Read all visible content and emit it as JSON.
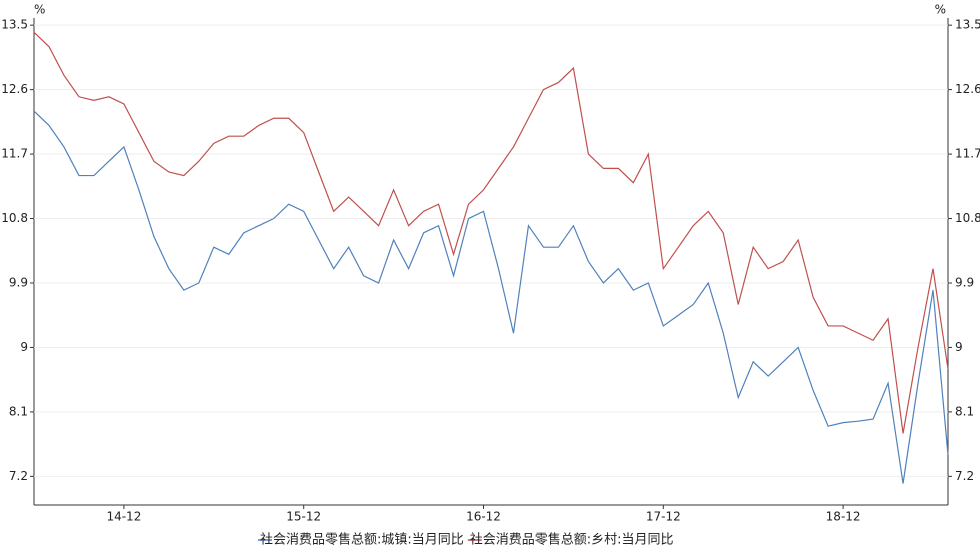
{
  "chart_data": {
    "type": "line",
    "y_unit": "%",
    "categories": [
      null,
      null,
      null,
      null,
      null,
      null,
      "14-12",
      null,
      null,
      null,
      null,
      null,
      null,
      null,
      null,
      null,
      null,
      null,
      "15-12",
      null,
      null,
      null,
      null,
      null,
      null,
      null,
      null,
      null,
      null,
      null,
      "16-12",
      null,
      null,
      null,
      null,
      null,
      null,
      null,
      null,
      null,
      null,
      null,
      "17-12",
      null,
      null,
      null,
      null,
      null,
      null,
      null,
      null,
      null,
      null,
      null,
      "18-12",
      null,
      null,
      null,
      null,
      null,
      null,
      null
    ],
    "series": [
      {
        "name": "社会消费品零售总额:城镇:当月同比",
        "color": "#4f81bd",
        "values": [
          12.3,
          12.1,
          11.8,
          11.4,
          11.4,
          11.6,
          11.8,
          11.2,
          10.55,
          10.1,
          9.8,
          9.9,
          10.4,
          10.3,
          10.6,
          10.7,
          10.8,
          11.0,
          10.9,
          10.5,
          10.1,
          10.4,
          10.0,
          9.9,
          10.5,
          10.1,
          10.6,
          10.7,
          10.0,
          10.8,
          10.9,
          10.1,
          9.2,
          10.7,
          10.4,
          10.4,
          10.7,
          10.2,
          9.9,
          10.1,
          9.8,
          9.9,
          9.3,
          9.45,
          9.6,
          9.9,
          9.2,
          8.3,
          8.8,
          8.6,
          8.8,
          9.0,
          8.4,
          7.9,
          7.95,
          7.97,
          8.0,
          8.5,
          7.1,
          8.5,
          9.8,
          7.5
        ]
      },
      {
        "name": "社会消费品零售总额:乡村:当月同比",
        "color": "#c0504d",
        "values": [
          13.4,
          13.2,
          12.8,
          12.5,
          12.45,
          12.5,
          12.4,
          12.0,
          11.6,
          11.45,
          11.4,
          11.6,
          11.85,
          11.95,
          11.95,
          12.1,
          12.2,
          12.2,
          12.0,
          11.45,
          10.9,
          11.1,
          10.9,
          10.7,
          11.2,
          10.7,
          10.9,
          11.0,
          10.3,
          11.0,
          11.2,
          11.5,
          11.8,
          12.2,
          12.6,
          12.7,
          12.9,
          11.7,
          11.5,
          11.5,
          11.3,
          11.7,
          10.1,
          10.4,
          10.7,
          10.9,
          10.6,
          9.6,
          10.4,
          10.1,
          10.2,
          10.5,
          9.7,
          9.3,
          9.3,
          9.2,
          9.1,
          9.4,
          7.8,
          9.0,
          10.1,
          8.7
        ]
      }
    ],
    "ylim": [
      6.8,
      13.6
    ],
    "yticks": [
      7.2,
      8.1,
      9.0,
      9.9,
      10.8,
      11.7,
      12.6,
      13.5
    ],
    "y2lim": [
      6.8,
      13.6
    ],
    "y2ticks": [
      7.2,
      8.1,
      9.0,
      9.9,
      10.8,
      11.7,
      12.6,
      13.5
    ],
    "grid": true
  }
}
